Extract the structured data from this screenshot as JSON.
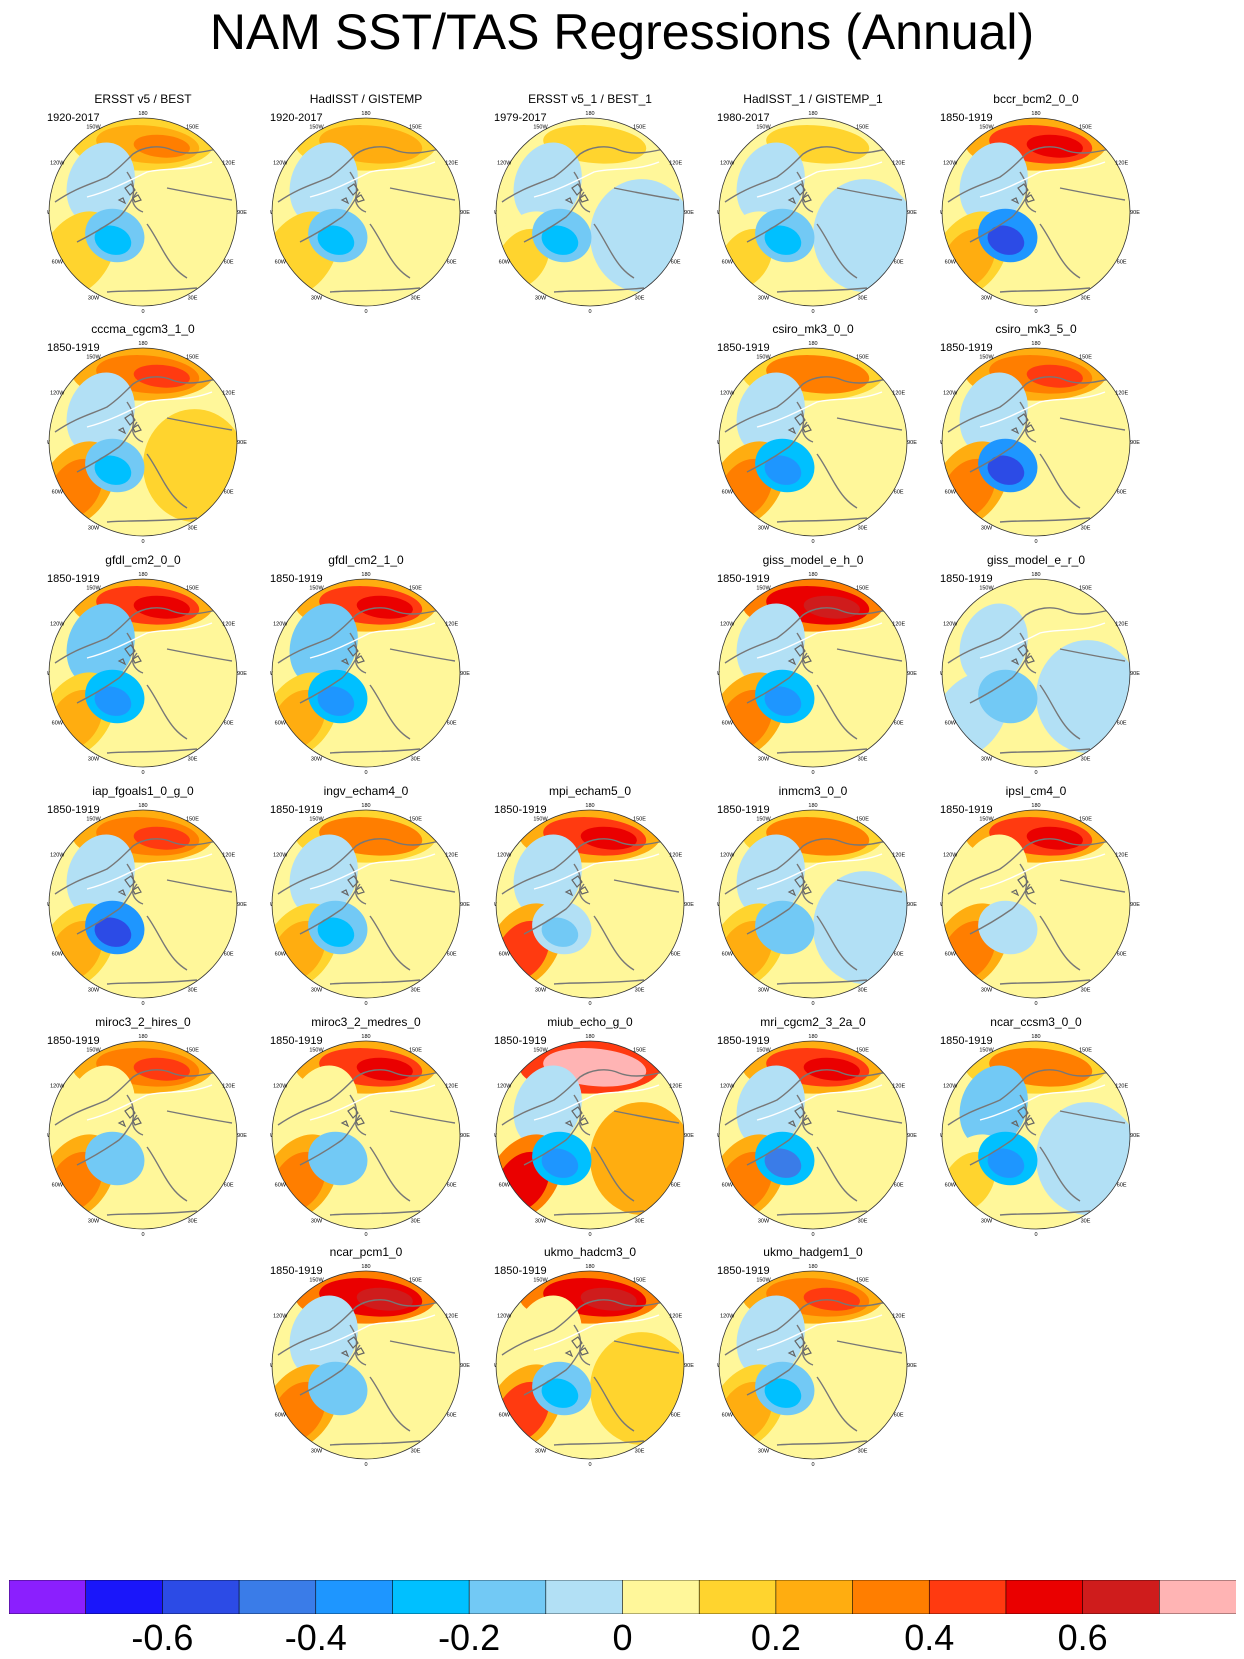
{
  "title": "NAM SST/TAS Regressions (Annual)",
  "chart_data": {
    "type": "heatmap",
    "title": "NAM SST/TAS Regressions (Annual)",
    "projection": "north-polar-stereographic",
    "longitude_labels": [
      "180",
      "150E",
      "120E",
      "90E",
      "60E",
      "30E",
      "0",
      "30W",
      "60W",
      "90W",
      "120W",
      "150W"
    ],
    "colorbar": {
      "levels": [
        -0.7,
        -0.6,
        -0.5,
        -0.4,
        -0.3,
        -0.2,
        -0.1,
        0,
        0.1,
        0.2,
        0.3,
        0.4,
        0.5,
        0.6,
        0.7
      ],
      "colors": [
        "#8b1ffe",
        "#1a16fa",
        "#2c4be6",
        "#3a7ce8",
        "#1e96ff",
        "#00c0ff",
        "#72c9f5",
        "#b2e0f5",
        "#fff79a",
        "#ffd42e",
        "#ffad10",
        "#ff7e00",
        "#ff3a10",
        "#ea0000",
        "#cf1c1c",
        "#ffb4b4"
      ],
      "tick_labels": [
        "-0.6",
        "-0.4",
        "-0.2",
        "0",
        "0.2",
        "0.4",
        "0.6"
      ],
      "tick_values": [
        -0.6,
        -0.4,
        -0.2,
        0,
        0.2,
        0.4,
        0.6
      ]
    },
    "panels": [
      {
        "name": "ERSST v5 / BEST",
        "period": "1920-2017",
        "row": 0,
        "col": 0,
        "pacific": 0.25,
        "atlantic": -0.3,
        "noratl": 0.15,
        "eurasia": 0.05,
        "canada": -0.1
      },
      {
        "name": "HadISST / GISTEMP",
        "period": "1920-2017",
        "row": 0,
        "col": 1,
        "pacific": 0.2,
        "atlantic": -0.3,
        "noratl": 0.15,
        "eurasia": 0.05,
        "canada": -0.1
      },
      {
        "name": "ERSST v5_1 / BEST_1",
        "period": "1979-2017",
        "row": 0,
        "col": 2,
        "pacific": 0.15,
        "atlantic": -0.25,
        "noratl": 0.1,
        "eurasia": -0.05,
        "canada": -0.1
      },
      {
        "name": "HadISST_1 / GISTEMP_1",
        "period": "1980-2017",
        "row": 0,
        "col": 3,
        "pacific": 0.1,
        "atlantic": -0.25,
        "noratl": 0.1,
        "eurasia": -0.05,
        "canada": -0.1
      },
      {
        "name": "bccr_bcm2_0_0",
        "period": "1850-1919",
        "row": 0,
        "col": 4,
        "pacific": 0.45,
        "atlantic": -0.55,
        "noratl": 0.25,
        "eurasia": 0.05,
        "canada": -0.1
      },
      {
        "name": "cccma_cgcm3_1_0",
        "period": "1850-1919",
        "row": 1,
        "col": 0,
        "pacific": 0.35,
        "atlantic": -0.3,
        "noratl": 0.3,
        "eurasia": 0.1,
        "canada": -0.05
      },
      {
        "name": "csiro_mk3_0_0",
        "period": "1850-1919",
        "row": 1,
        "col": 3,
        "pacific": 0.3,
        "atlantic": -0.35,
        "noratl": 0.3,
        "eurasia": 0.05,
        "canada": -0.05
      },
      {
        "name": "csiro_mk3_5_0",
        "period": "1850-1919",
        "row": 1,
        "col": 4,
        "pacific": 0.35,
        "atlantic": -0.55,
        "noratl": 0.3,
        "eurasia": 0.05,
        "canada": -0.05
      },
      {
        "name": "gfdl_cm2_0_0",
        "period": "1850-1919",
        "row": 2,
        "col": 0,
        "pacific": 0.4,
        "atlantic": -0.35,
        "noratl": 0.25,
        "eurasia": 0.05,
        "canada": -0.15
      },
      {
        "name": "gfdl_cm2_1_0",
        "period": "1850-1919",
        "row": 2,
        "col": 1,
        "pacific": 0.4,
        "atlantic": -0.4,
        "noratl": 0.25,
        "eurasia": 0.05,
        "canada": -0.15
      },
      {
        "name": "giss_model_e_h_0",
        "period": "1850-1919",
        "row": 2,
        "col": 3,
        "pacific": 0.55,
        "atlantic": -0.4,
        "noratl": 0.35,
        "eurasia": 0.05,
        "canada": -0.05
      },
      {
        "name": "giss_model_e_r_0",
        "period": "1850-1919",
        "row": 2,
        "col": 4,
        "pacific": 0.05,
        "atlantic": -0.2,
        "noratl": -0.1,
        "eurasia": -0.05,
        "canada": -0.1
      },
      {
        "name": "iap_fgoals1_0_g_0",
        "period": "1850-1919",
        "row": 3,
        "col": 0,
        "pacific": 0.35,
        "atlantic": -0.6,
        "noratl": 0.25,
        "eurasia": 0.05,
        "canada": -0.1
      },
      {
        "name": "ingv_echam4_0",
        "period": "1850-1919",
        "row": 3,
        "col": 1,
        "pacific": 0.3,
        "atlantic": -0.3,
        "noratl": 0.25,
        "eurasia": 0.05,
        "canada": -0.1
      },
      {
        "name": "mpi_echam5_0",
        "period": "1850-1919",
        "row": 3,
        "col": 2,
        "pacific": 0.45,
        "atlantic": -0.15,
        "noratl": 0.4,
        "eurasia": 0.05,
        "canada": -0.1
      },
      {
        "name": "inmcm3_0_0",
        "period": "1850-1919",
        "row": 3,
        "col": 3,
        "pacific": 0.3,
        "atlantic": -0.2,
        "noratl": 0.2,
        "eurasia": -0.05,
        "canada": -0.1
      },
      {
        "name": "ipsl_cm4_0",
        "period": "1850-1919",
        "row": 3,
        "col": 4,
        "pacific": 0.4,
        "atlantic": -0.1,
        "noratl": 0.3,
        "eurasia": 0.05,
        "canada": 0.05
      },
      {
        "name": "miroc3_2_hires_0",
        "period": "1850-1919",
        "row": 4,
        "col": 0,
        "pacific": 0.35,
        "atlantic": -0.2,
        "noratl": 0.3,
        "eurasia": 0.05,
        "canada": 0.05
      },
      {
        "name": "miroc3_2_medres_0",
        "period": "1850-1919",
        "row": 4,
        "col": 1,
        "pacific": 0.4,
        "atlantic": -0.2,
        "noratl": 0.3,
        "eurasia": 0.05,
        "canada": 0.05
      },
      {
        "name": "miub_echo_g_0",
        "period": "1850-1919",
        "row": 4,
        "col": 2,
        "pacific": 0.7,
        "atlantic": -0.35,
        "noratl": 0.5,
        "eurasia": 0.2,
        "canada": -0.1
      },
      {
        "name": "mri_cgcm2_3_2a_0",
        "period": "1850-1919",
        "row": 4,
        "col": 3,
        "pacific": 0.45,
        "atlantic": -0.5,
        "noratl": 0.35,
        "eurasia": 0.05,
        "canada": -0.1
      },
      {
        "name": "ncar_ccsm3_0_0",
        "period": "1850-1919",
        "row": 4,
        "col": 4,
        "pacific": 0.3,
        "atlantic": -0.35,
        "noratl": 0.1,
        "eurasia": -0.05,
        "canada": -0.15
      },
      {
        "name": "ncar_pcm1_0",
        "period": "1850-1919",
        "row": 5,
        "col": 1,
        "pacific": 0.5,
        "atlantic": -0.2,
        "noratl": 0.3,
        "eurasia": 0.05,
        "canada": -0.1
      },
      {
        "name": "ukmo_hadcm3_0",
        "period": "1850-1919",
        "row": 5,
        "col": 2,
        "pacific": 0.55,
        "atlantic": -0.3,
        "noratl": 0.4,
        "eurasia": 0.1,
        "canada": 0.05
      },
      {
        "name": "ukmo_hadgem1_0",
        "period": "1850-1919",
        "row": 5,
        "col": 3,
        "pacific": 0.35,
        "atlantic": -0.3,
        "noratl": 0.25,
        "eurasia": 0.05,
        "canada": -0.05
      }
    ]
  }
}
